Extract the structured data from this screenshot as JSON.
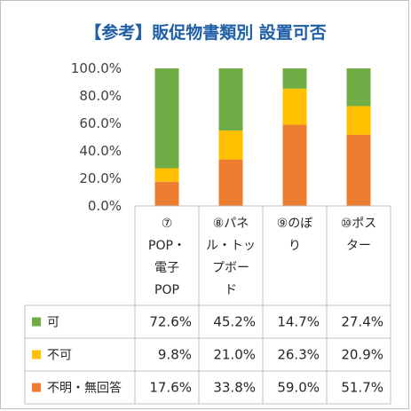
{
  "title": "【参考】販促物書類別 設置可否",
  "chart_data": {
    "type": "bar",
    "stacked": true,
    "percent_stacked": true,
    "categories": [
      [
        "⑦",
        "POP・",
        "電子",
        "POP"
      ],
      [
        "⑧パネ",
        "ル・トッ",
        "プボー",
        "ド"
      ],
      [
        "⑨のぼ",
        "り"
      ],
      [
        "⑩ポス",
        "ター"
      ]
    ],
    "series": [
      {
        "name": "不明・無回答",
        "values": [
          17.6,
          33.8,
          59.0,
          51.7
        ],
        "labels": [
          "17.6%",
          "33.8%",
          "59.0%",
          "51.7%"
        ],
        "color": "#ed7d31"
      },
      {
        "name": "不可",
        "values": [
          9.8,
          21.0,
          26.3,
          20.9
        ],
        "labels": [
          "9.8%",
          "21.0%",
          "26.3%",
          "20.9%"
        ],
        "color": "#ffc000"
      },
      {
        "name": "可",
        "values": [
          72.6,
          45.2,
          14.7,
          27.4
        ],
        "labels": [
          "72.6%",
          "45.2%",
          "14.7%",
          "27.4%"
        ],
        "color": "#70ad47"
      }
    ],
    "table_row_order": [
      2,
      1,
      0
    ],
    "yticks": [
      "0.0%",
      "20.0%",
      "40.0%",
      "60.0%",
      "80.0%",
      "100.0%"
    ],
    "ylim": [
      0,
      100
    ],
    "grid": false,
    "data_table": true
  }
}
